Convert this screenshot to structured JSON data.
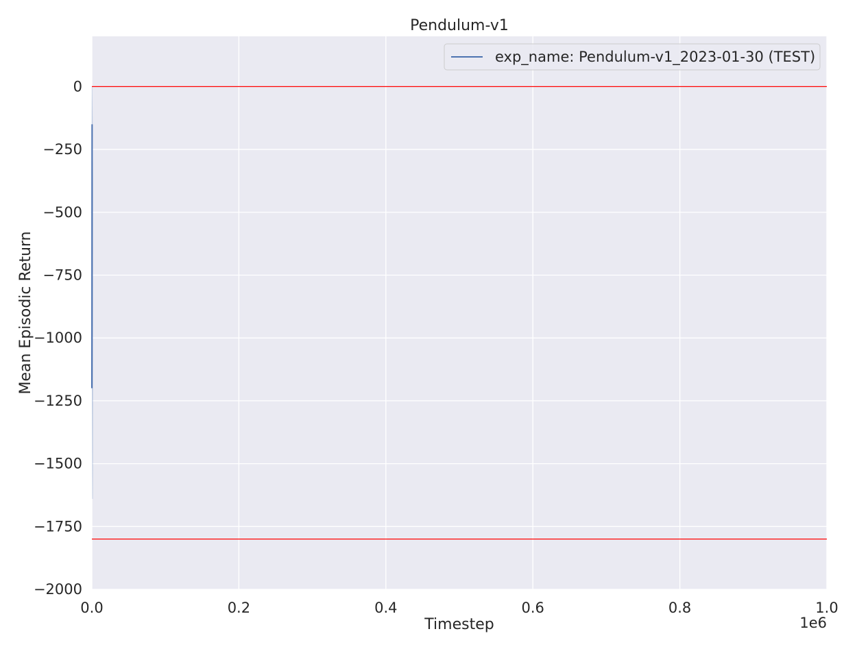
{
  "chart_data": {
    "type": "line",
    "title": "Pendulum-v1",
    "xlabel": "Timestep",
    "ylabel": "Mean Episodic Return",
    "x_offset_label": "1e6",
    "xlim": [
      0.0,
      1.0
    ],
    "ylim": [
      -2000,
      200
    ],
    "xticks": [
      0.0,
      0.2,
      0.4,
      0.6,
      0.8,
      1.0
    ],
    "xtick_labels": [
      "0.0",
      "0.2",
      "0.4",
      "0.6",
      "0.8",
      "1.0"
    ],
    "yticks": [
      0,
      -250,
      -500,
      -750,
      -1000,
      -1250,
      -1500,
      -1750,
      -2000
    ],
    "ytick_labels": [
      "0",
      "−250",
      "−500",
      "−750",
      "−1000",
      "−1250",
      "−1500",
      "−1750",
      "−2000"
    ],
    "grid": true,
    "legend_placement": "top-right",
    "background_color": "#eaeaf2",
    "grid_color": "#ffffff",
    "series": [
      {
        "name": "exp_name: Pendulum-v1_2023-01-30 (TEST)",
        "color": "#4c72b0",
        "x": [
          0.0,
          0.0001,
          0.0002,
          0.0003
        ],
        "y": [
          -1200,
          -1000,
          -500,
          -150
        ],
        "band_low": [
          -1640,
          -1500,
          -900,
          -400
        ],
        "band_high": [
          -760,
          -500,
          -100,
          0
        ]
      }
    ],
    "reference_lines": [
      {
        "y": 0,
        "color": "#ff0000"
      },
      {
        "y": -1800,
        "color": "#ff0000"
      }
    ]
  }
}
